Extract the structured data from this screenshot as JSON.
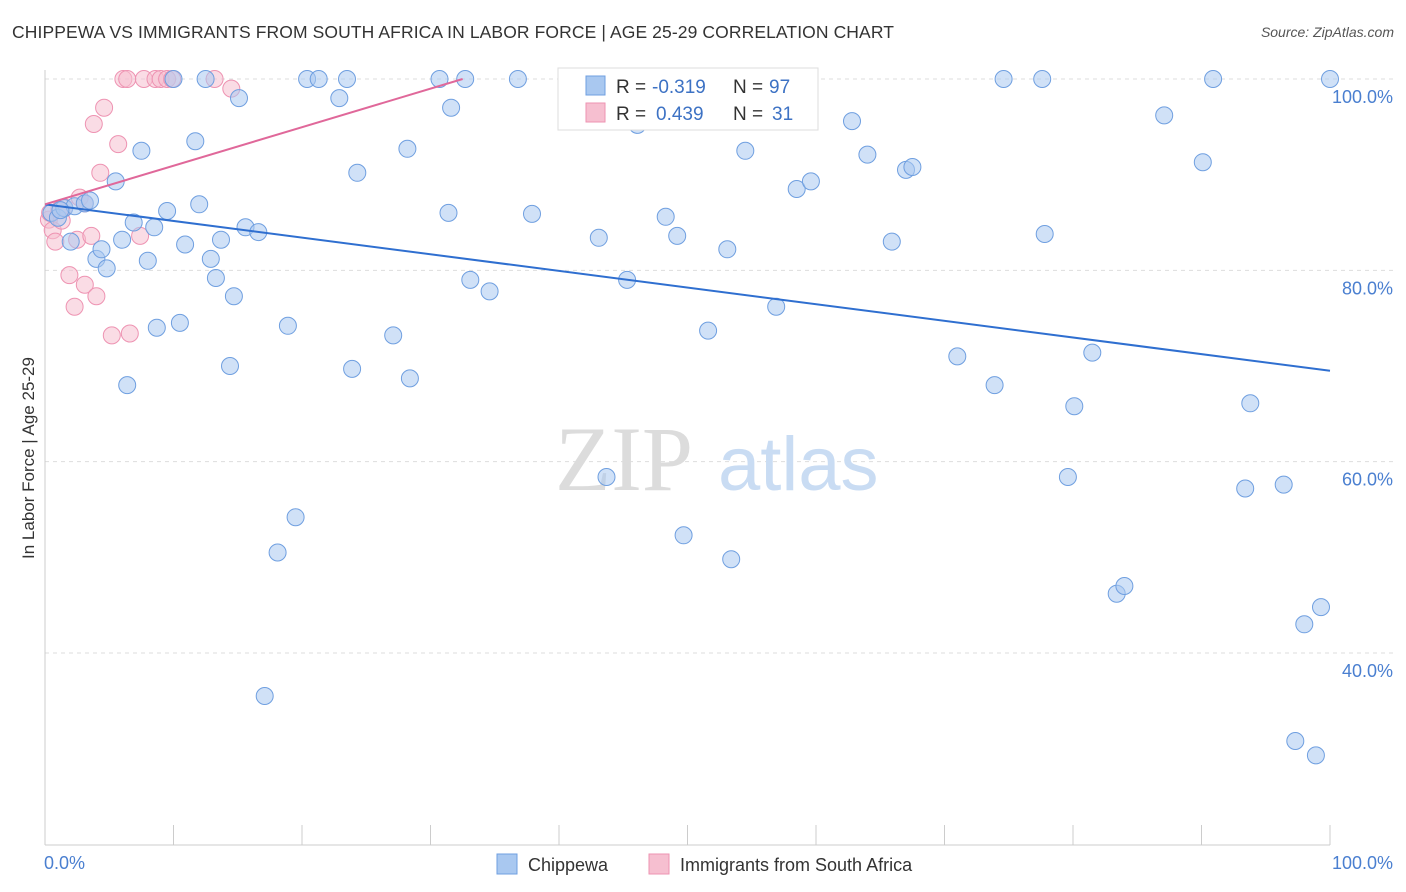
{
  "title": "CHIPPEWA VS IMMIGRANTS FROM SOUTH AFRICA IN LABOR FORCE | AGE 25-29 CORRELATION CHART",
  "source": "Source: ZipAtlas.com",
  "watermark": {
    "zip": "ZIP",
    "atlas": "atlas"
  },
  "colors": {
    "blue_fill": "#a9c8f0",
    "blue_stroke": "#6f9fe0",
    "blue_line": "#2f6fd0",
    "pink_fill": "#f6bfd0",
    "pink_stroke": "#ee93b2",
    "pink_line": "#e0689a",
    "grid": "#dddddd",
    "tick_text": "#4a7fd0"
  },
  "legend": {
    "r_label": "R =",
    "n_label": "N =",
    "series": [
      {
        "r": "-0.319",
        "n": "97"
      },
      {
        "r": "0.439",
        "n": "31"
      }
    ]
  },
  "chart_data": {
    "type": "scatter",
    "title": "CHIPPEWA VS IMMIGRANTS FROM SOUTH AFRICA IN LABOR FORCE | AGE 25-29 CORRELATION CHART",
    "xlabel": "",
    "ylabel": "In Labor Force | Age 25-29",
    "xlim": [
      0,
      100
    ],
    "ylim": [
      20,
      102
    ],
    "x_tick_labels": [
      "0.0%",
      "100.0%"
    ],
    "y_ticks": [
      40,
      60,
      80,
      100
    ],
    "y_tick_labels": [
      "40.0%",
      "60.0%",
      "80.0%",
      "100.0%"
    ],
    "grid": true,
    "legend_position": "top-center",
    "series": [
      {
        "name": "Chippewa",
        "color": "#a9c8f0",
        "trend": {
          "x": [
            0,
            100
          ],
          "y": [
            86.9,
            69.5
          ]
        },
        "points": [
          {
            "x": 0.5,
            "y": 86
          },
          {
            "x": 1,
            "y": 85.5
          },
          {
            "x": 1.5,
            "y": 86.5
          },
          {
            "x": 2,
            "y": 83
          },
          {
            "x": 2.3,
            "y": 86.7
          },
          {
            "x": 3.1,
            "y": 87
          },
          {
            "x": 3.5,
            "y": 87.3
          },
          {
            "x": 4,
            "y": 81.2
          },
          {
            "x": 4.4,
            "y": 82.2
          },
          {
            "x": 4.8,
            "y": 80.2
          },
          {
            "x": 5.5,
            "y": 89.3
          },
          {
            "x": 6,
            "y": 83.2
          },
          {
            "x": 6.4,
            "y": 68
          },
          {
            "x": 6.9,
            "y": 85
          },
          {
            "x": 7.5,
            "y": 92.5
          },
          {
            "x": 8,
            "y": 81
          },
          {
            "x": 8.5,
            "y": 84.5
          },
          {
            "x": 8.7,
            "y": 74
          },
          {
            "x": 9.5,
            "y": 86.2
          },
          {
            "x": 10,
            "y": 100
          },
          {
            "x": 10.5,
            "y": 74.5
          },
          {
            "x": 10.9,
            "y": 82.7
          },
          {
            "x": 11.7,
            "y": 93.5
          },
          {
            "x": 12,
            "y": 86.9
          },
          {
            "x": 12.5,
            "y": 100
          },
          {
            "x": 12.9,
            "y": 81.2
          },
          {
            "x": 13.3,
            "y": 79.2
          },
          {
            "x": 13.7,
            "y": 83.2
          },
          {
            "x": 14.4,
            "y": 70
          },
          {
            "x": 14.7,
            "y": 77.3
          },
          {
            "x": 15.1,
            "y": 98
          },
          {
            "x": 15.6,
            "y": 84.5
          },
          {
            "x": 16.6,
            "y": 84
          },
          {
            "x": 17.1,
            "y": 35.5
          },
          {
            "x": 18.1,
            "y": 50.5
          },
          {
            "x": 18.9,
            "y": 74.2
          },
          {
            "x": 19.5,
            "y": 54.2
          },
          {
            "x": 20.4,
            "y": 100
          },
          {
            "x": 21.3,
            "y": 100
          },
          {
            "x": 22.9,
            "y": 98
          },
          {
            "x": 23.5,
            "y": 100
          },
          {
            "x": 23.9,
            "y": 69.7
          },
          {
            "x": 24.3,
            "y": 90.2
          },
          {
            "x": 27.1,
            "y": 73.2
          },
          {
            "x": 28.2,
            "y": 92.7
          },
          {
            "x": 28.4,
            "y": 68.7
          },
          {
            "x": 30.7,
            "y": 100
          },
          {
            "x": 31.4,
            "y": 86
          },
          {
            "x": 31.6,
            "y": 97
          },
          {
            "x": 32.7,
            "y": 100
          },
          {
            "x": 33.1,
            "y": 79
          },
          {
            "x": 34.6,
            "y": 77.8
          },
          {
            "x": 36.8,
            "y": 100
          },
          {
            "x": 37.9,
            "y": 85.9
          },
          {
            "x": 43.1,
            "y": 83.4
          },
          {
            "x": 43.7,
            "y": 58.4
          },
          {
            "x": 45.3,
            "y": 79
          },
          {
            "x": 46.1,
            "y": 95.2
          },
          {
            "x": 47.2,
            "y": 100
          },
          {
            "x": 48.3,
            "y": 85.6
          },
          {
            "x": 49.2,
            "y": 83.6
          },
          {
            "x": 49.7,
            "y": 52.3
          },
          {
            "x": 50.1,
            "y": 100
          },
          {
            "x": 51.6,
            "y": 73.7
          },
          {
            "x": 53.1,
            "y": 82.2
          },
          {
            "x": 53.4,
            "y": 49.8
          },
          {
            "x": 54.5,
            "y": 92.5
          },
          {
            "x": 56.9,
            "y": 76.2
          },
          {
            "x": 58.5,
            "y": 88.5
          },
          {
            "x": 59.6,
            "y": 89.3
          },
          {
            "x": 62.8,
            "y": 95.6
          },
          {
            "x": 64,
            "y": 92.1
          },
          {
            "x": 65.9,
            "y": 83
          },
          {
            "x": 67,
            "y": 90.5
          },
          {
            "x": 67.5,
            "y": 90.8
          },
          {
            "x": 71,
            "y": 71
          },
          {
            "x": 73.9,
            "y": 68
          },
          {
            "x": 74.6,
            "y": 100
          },
          {
            "x": 77.6,
            "y": 100
          },
          {
            "x": 77.8,
            "y": 83.8
          },
          {
            "x": 80.1,
            "y": 65.8
          },
          {
            "x": 79.6,
            "y": 58.4
          },
          {
            "x": 81.5,
            "y": 71.4
          },
          {
            "x": 83.4,
            "y": 46.2
          },
          {
            "x": 84,
            "y": 47
          },
          {
            "x": 87.1,
            "y": 96.2
          },
          {
            "x": 90.1,
            "y": 91.3
          },
          {
            "x": 90.9,
            "y": 100
          },
          {
            "x": 93.8,
            "y": 66.1
          },
          {
            "x": 93.4,
            "y": 57.2
          },
          {
            "x": 96.4,
            "y": 57.6
          },
          {
            "x": 97.3,
            "y": 30.8
          },
          {
            "x": 98,
            "y": 43
          },
          {
            "x": 98.9,
            "y": 29.3
          },
          {
            "x": 99.3,
            "y": 44.8
          },
          {
            "x": 100,
            "y": 100
          },
          {
            "x": 1.2,
            "y": 86.3
          }
        ]
      },
      {
        "name": "Immigrants from South Africa",
        "color": "#f6bfd0",
        "trend": {
          "x": [
            0,
            32.5
          ],
          "y": [
            86.9,
            100
          ]
        },
        "points": [
          {
            "x": 0.3,
            "y": 85.3
          },
          {
            "x": 0.6,
            "y": 84.2
          },
          {
            "x": 0.8,
            "y": 83
          },
          {
            "x": 1.1,
            "y": 86.3
          },
          {
            "x": 1.3,
            "y": 85.2
          },
          {
            "x": 1.5,
            "y": 86.6
          },
          {
            "x": 1.9,
            "y": 79.5
          },
          {
            "x": 2.3,
            "y": 76.2
          },
          {
            "x": 2.5,
            "y": 83.2
          },
          {
            "x": 2.7,
            "y": 87.6
          },
          {
            "x": 3.1,
            "y": 87
          },
          {
            "x": 3.1,
            "y": 78.5
          },
          {
            "x": 3.6,
            "y": 83.6
          },
          {
            "x": 3.8,
            "y": 95.3
          },
          {
            "x": 4,
            "y": 77.3
          },
          {
            "x": 4.3,
            "y": 90.2
          },
          {
            "x": 4.6,
            "y": 97
          },
          {
            "x": 5.2,
            "y": 73.2
          },
          {
            "x": 5.7,
            "y": 93.2
          },
          {
            "x": 6.1,
            "y": 100
          },
          {
            "x": 6.4,
            "y": 100
          },
          {
            "x": 6.6,
            "y": 73.4
          },
          {
            "x": 7.4,
            "y": 83.6
          },
          {
            "x": 7.7,
            "y": 100
          },
          {
            "x": 8.6,
            "y": 100
          },
          {
            "x": 9,
            "y": 100
          },
          {
            "x": 9.5,
            "y": 100
          },
          {
            "x": 9.9,
            "y": 100
          },
          {
            "x": 13.2,
            "y": 100
          },
          {
            "x": 14.5,
            "y": 99
          },
          {
            "x": 0.4,
            "y": 86
          }
        ]
      }
    ]
  },
  "bottom_legend": [
    "Chippewa",
    "Immigrants from South Africa"
  ]
}
